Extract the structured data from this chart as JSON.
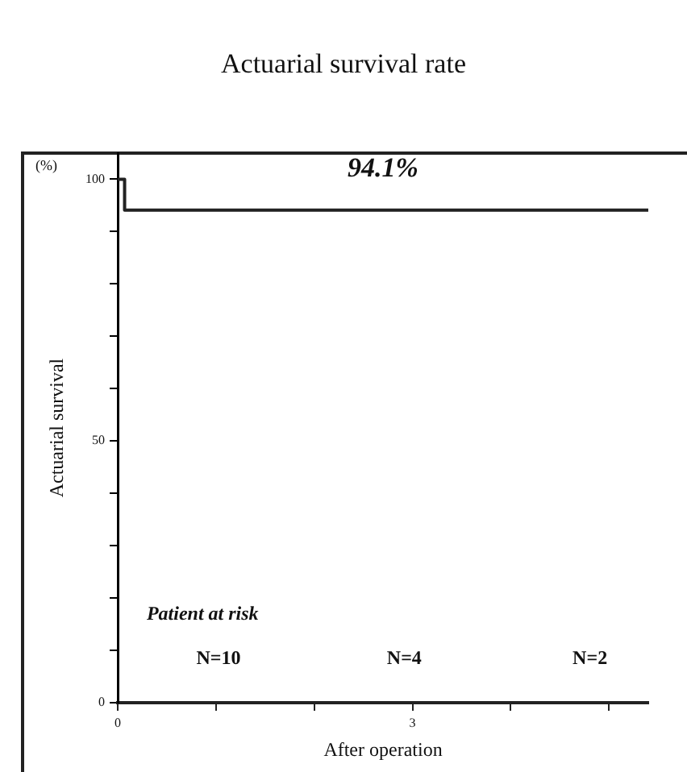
{
  "chart_data": {
    "type": "line",
    "title": "Actuarial survival rate",
    "xlabel": "After operation",
    "ylabel": "Actuarial survival",
    "x": [
      0,
      0.07,
      0.07,
      5.4
    ],
    "series": [
      {
        "color": "#222222",
        "values": [
          100,
          100,
          94.1,
          94.1
        ]
      }
    ],
    "xlim": [
      0,
      5.4
    ],
    "xticks": [
      0,
      {
        "value": 1,
        "label": null
      },
      {
        "value": 2,
        "label": null
      },
      3,
      {
        "value": 4,
        "label": null
      },
      {
        "value": 5,
        "label": null
      }
    ],
    "ylim": [
      0,
      105
    ],
    "yticks": [
      0,
      {
        "value": 10,
        "label": null
      },
      {
        "value": 20,
        "label": null
      },
      {
        "value": 30,
        "label": null
      },
      {
        "value": 40,
        "label": null
      },
      50,
      {
        "value": 60,
        "label": null
      },
      {
        "value": 70,
        "label": null
      },
      {
        "value": 80,
        "label": null
      },
      {
        "value": 90,
        "label": null
      },
      100
    ],
    "annotations": [
      "(%)",
      "94.1%",
      "Patient at risk",
      "N=10",
      "N=4",
      "N=2"
    ],
    "legend": false,
    "grid": false,
    "marker": "none"
  }
}
